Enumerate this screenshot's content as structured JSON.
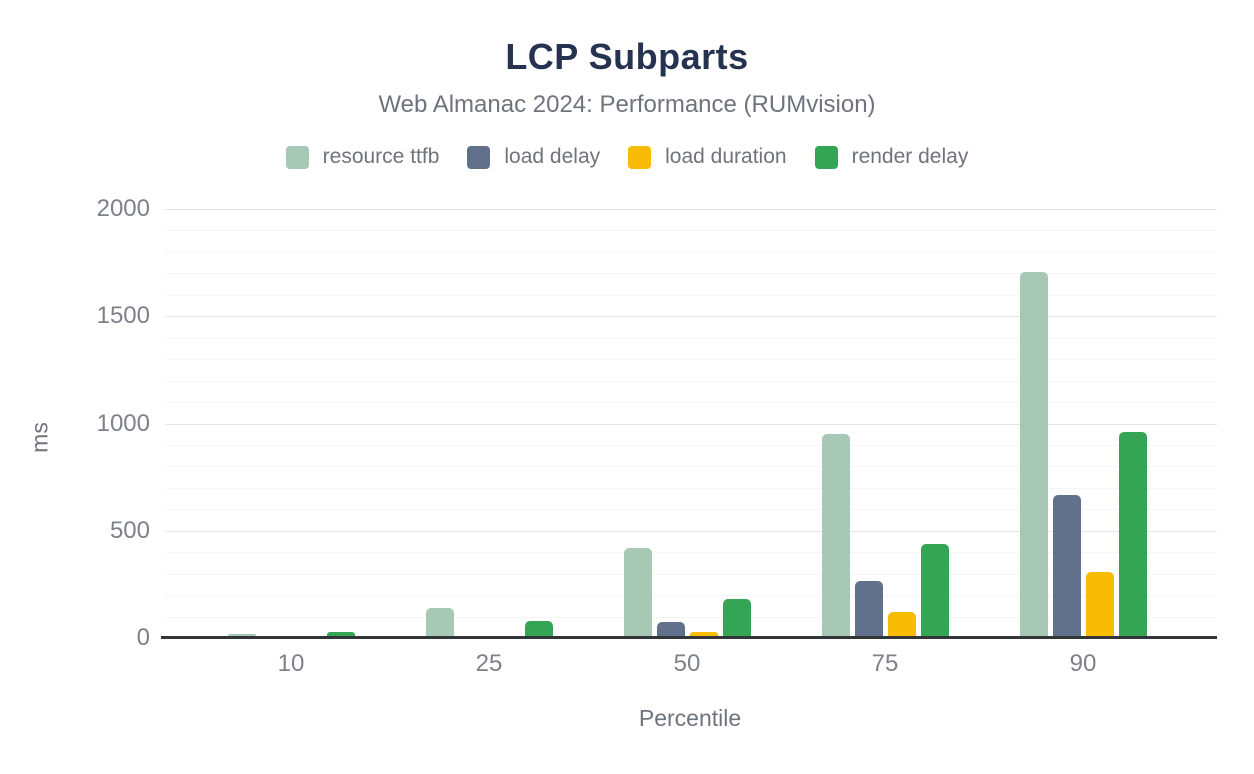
{
  "title": "LCP Subparts",
  "subtitle": "Web Almanac 2024: Performance (RUMvision)",
  "chart_data": {
    "type": "bar",
    "title": "LCP Subparts",
    "subtitle": "Web Almanac 2024: Performance (RUMvision)",
    "xlabel": "Percentile",
    "ylabel": "ms",
    "categories": [
      "10",
      "25",
      "50",
      "75",
      "90"
    ],
    "series": [
      {
        "name": "resource ttfb",
        "color": "#a8c8b6",
        "values": [
          20,
          140,
          420,
          950,
          1705
        ]
      },
      {
        "name": "load delay",
        "color": "#61718c",
        "values": [
          0,
          10,
          75,
          265,
          665
        ]
      },
      {
        "name": "load duration",
        "color": "#f9bc05",
        "values": [
          0,
          0,
          30,
          120,
          310
        ]
      },
      {
        "name": "render delay",
        "color": "#34a455",
        "values": [
          30,
          80,
          180,
          440,
          960
        ]
      }
    ],
    "ylim": [
      0,
      2000
    ],
    "yticks": [
      0,
      500,
      1000,
      1500,
      2000
    ],
    "minor_grid_step": 100,
    "major_grid_step": 500,
    "grid": true,
    "legend_position": "top",
    "title_color": "#263350",
    "text_color": "#6f747c",
    "tick_color": "#7d828a",
    "axis_color": "#333639"
  }
}
